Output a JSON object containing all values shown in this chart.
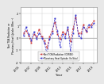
{
  "xlabel": "Year",
  "ylabel": "Net TOA Radiation or\nPlanetary Heat Uptake (Wm⁻²)",
  "xlim": [
    2005,
    2019.5
  ],
  "ylim": [
    -2.0,
    2.5
  ],
  "yticks": [
    -2,
    -1,
    0,
    1,
    2
  ],
  "xticks": [
    2005,
    2007,
    2009,
    2011,
    2013,
    2015,
    2017,
    2019
  ],
  "legend1": "Net TOA Radiation (CERES)",
  "legend2": "Planetary Heat Uptake (In Situ)",
  "color1": "#cc3333",
  "color2": "#3333cc",
  "ceres_x": [
    2005.5,
    2006.0,
    2006.5,
    2007.0,
    2007.5,
    2008.0,
    2008.5,
    2009.0,
    2009.5,
    2010.0,
    2010.5,
    2011.0,
    2011.5,
    2012.0,
    2012.5,
    2013.0,
    2013.5,
    2014.0,
    2014.5,
    2015.0,
    2015.5,
    2016.0,
    2016.5,
    2017.0,
    2017.5,
    2018.0,
    2018.5,
    2019.0
  ],
  "ceres_y": [
    0.4,
    0.6,
    0.2,
    -0.4,
    0.3,
    0.1,
    0.7,
    0.1,
    -0.2,
    -0.8,
    0.1,
    0.6,
    1.3,
    0.3,
    -0.1,
    0.5,
    0.3,
    0.7,
    -0.3,
    0.8,
    1.7,
    0.4,
    0.4,
    1.1,
    0.5,
    0.9,
    1.1,
    1.4
  ],
  "insitu_x": [
    2005.5,
    2006.0,
    2006.5,
    2007.0,
    2007.5,
    2008.0,
    2008.5,
    2009.0,
    2009.5,
    2010.0,
    2010.5,
    2011.0,
    2011.5,
    2012.0,
    2012.5,
    2013.0,
    2013.5,
    2014.0,
    2014.5,
    2015.0,
    2015.5,
    2016.0,
    2016.5,
    2017.0,
    2017.5,
    2018.0,
    2018.5,
    2019.0
  ],
  "insitu_y": [
    0.2,
    0.9,
    0.3,
    -0.2,
    0.5,
    -0.1,
    0.4,
    0.0,
    -0.4,
    -1.3,
    -0.1,
    0.4,
    1.6,
    0.6,
    -0.7,
    0.3,
    0.0,
    0.9,
    -1.1,
    0.4,
    1.9,
    0.2,
    0.0,
    0.9,
    0.6,
    1.1,
    0.9,
    1.2
  ],
  "background": "#e8e8e8",
  "plot_bg": "#ffffff",
  "grid_color": "#cccccc",
  "zero_line_color": "#aaaaaa"
}
